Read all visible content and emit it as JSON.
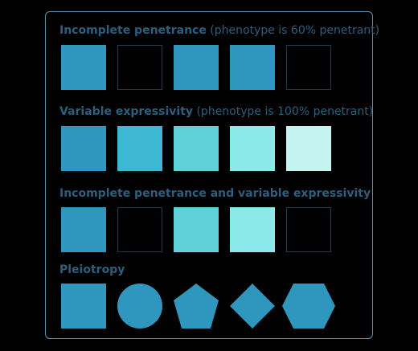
{
  "sections": [
    {
      "title": "Incomplete penetrance",
      "note": "(phenotype is 60% penetrant)",
      "tiles": [
        {
          "shape": "square",
          "color": "#2f96bd"
        },
        {
          "shape": "empty",
          "color": ""
        },
        {
          "shape": "square",
          "color": "#2f96bd"
        },
        {
          "shape": "square",
          "color": "#2f96bd"
        },
        {
          "shape": "empty",
          "color": ""
        }
      ]
    },
    {
      "title": "Variable expressivity",
      "note": "(phenotype is 100% penetrant)",
      "tiles": [
        {
          "shape": "square",
          "color": "#2f96bd"
        },
        {
          "shape": "square",
          "color": "#3cb8d2"
        },
        {
          "shape": "square",
          "color": "#60d1d6"
        },
        {
          "shape": "square",
          "color": "#8ce9ea"
        },
        {
          "shape": "square",
          "color": "#c4f3f1"
        }
      ]
    },
    {
      "title": "Incomplete penetrance and variable expressivity",
      "note": "",
      "tiles": [
        {
          "shape": "square",
          "color": "#2f96bd"
        },
        {
          "shape": "empty",
          "color": ""
        },
        {
          "shape": "square",
          "color": "#60d1d6"
        },
        {
          "shape": "square",
          "color": "#8ce9ea"
        },
        {
          "shape": "empty",
          "color": ""
        }
      ]
    },
    {
      "title": "Pleiotropy",
      "note": "",
      "tiles": [
        {
          "shape": "square",
          "color": "#2f96bd"
        },
        {
          "shape": "circle",
          "color": "#2f96bd"
        },
        {
          "shape": "pentagon",
          "color": "#2f96bd"
        },
        {
          "shape": "diamond",
          "color": "#2f96bd"
        },
        {
          "shape": "hexagon",
          "color": "#2f96bd"
        }
      ]
    }
  ],
  "colors": {
    "border": "#5b8fae",
    "heading": "#2c5e7d",
    "empty_outline": "#1f3a4f",
    "background": "#000000"
  }
}
